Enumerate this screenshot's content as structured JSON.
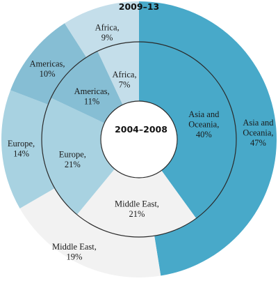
{
  "chart_data": {
    "type": "pie",
    "subtype": "double-donut",
    "rings": [
      {
        "name": "2009-13",
        "position": "outer",
        "title": "2009–13",
        "slices": [
          {
            "label_lines": [
              "Asia and",
              "Oceania,",
              "47%"
            ],
            "value": 47,
            "color": "#48a9c9"
          },
          {
            "label_lines": [
              "Middle East,",
              "19%"
            ],
            "value": 19,
            "color": "#f2f2f2"
          },
          {
            "label_lines": [
              "Europe,",
              "14%"
            ],
            "value": 14,
            "color": "#a8d2e1"
          },
          {
            "label_lines": [
              "Americas,",
              "10%"
            ],
            "value": 10,
            "color": "#86bed4"
          },
          {
            "label_lines": [
              "Africa,",
              "9%"
            ],
            "value": 9,
            "color": "#c4deea"
          }
        ]
      },
      {
        "name": "2004-2008",
        "position": "inner",
        "title": "2004–2008",
        "slices": [
          {
            "label_lines": [
              "Asia and",
              "Oceania,",
              "40%"
            ],
            "value": 40,
            "color": "#48a9c9"
          },
          {
            "label_lines": [
              "Middle East,",
              "21%"
            ],
            "value": 21,
            "color": "#f2f2f2"
          },
          {
            "label_lines": [
              "Europe,",
              "21%"
            ],
            "value": 21,
            "color": "#a8d2e1"
          },
          {
            "label_lines": [
              "Americas,",
              "11%"
            ],
            "value": 11,
            "color": "#86bed4"
          },
          {
            "label_lines": [
              "Africa,",
              "7%"
            ],
            "value": 7,
            "color": "#c4deea"
          }
        ]
      }
    ],
    "start": "top",
    "direction": "clockwise"
  }
}
